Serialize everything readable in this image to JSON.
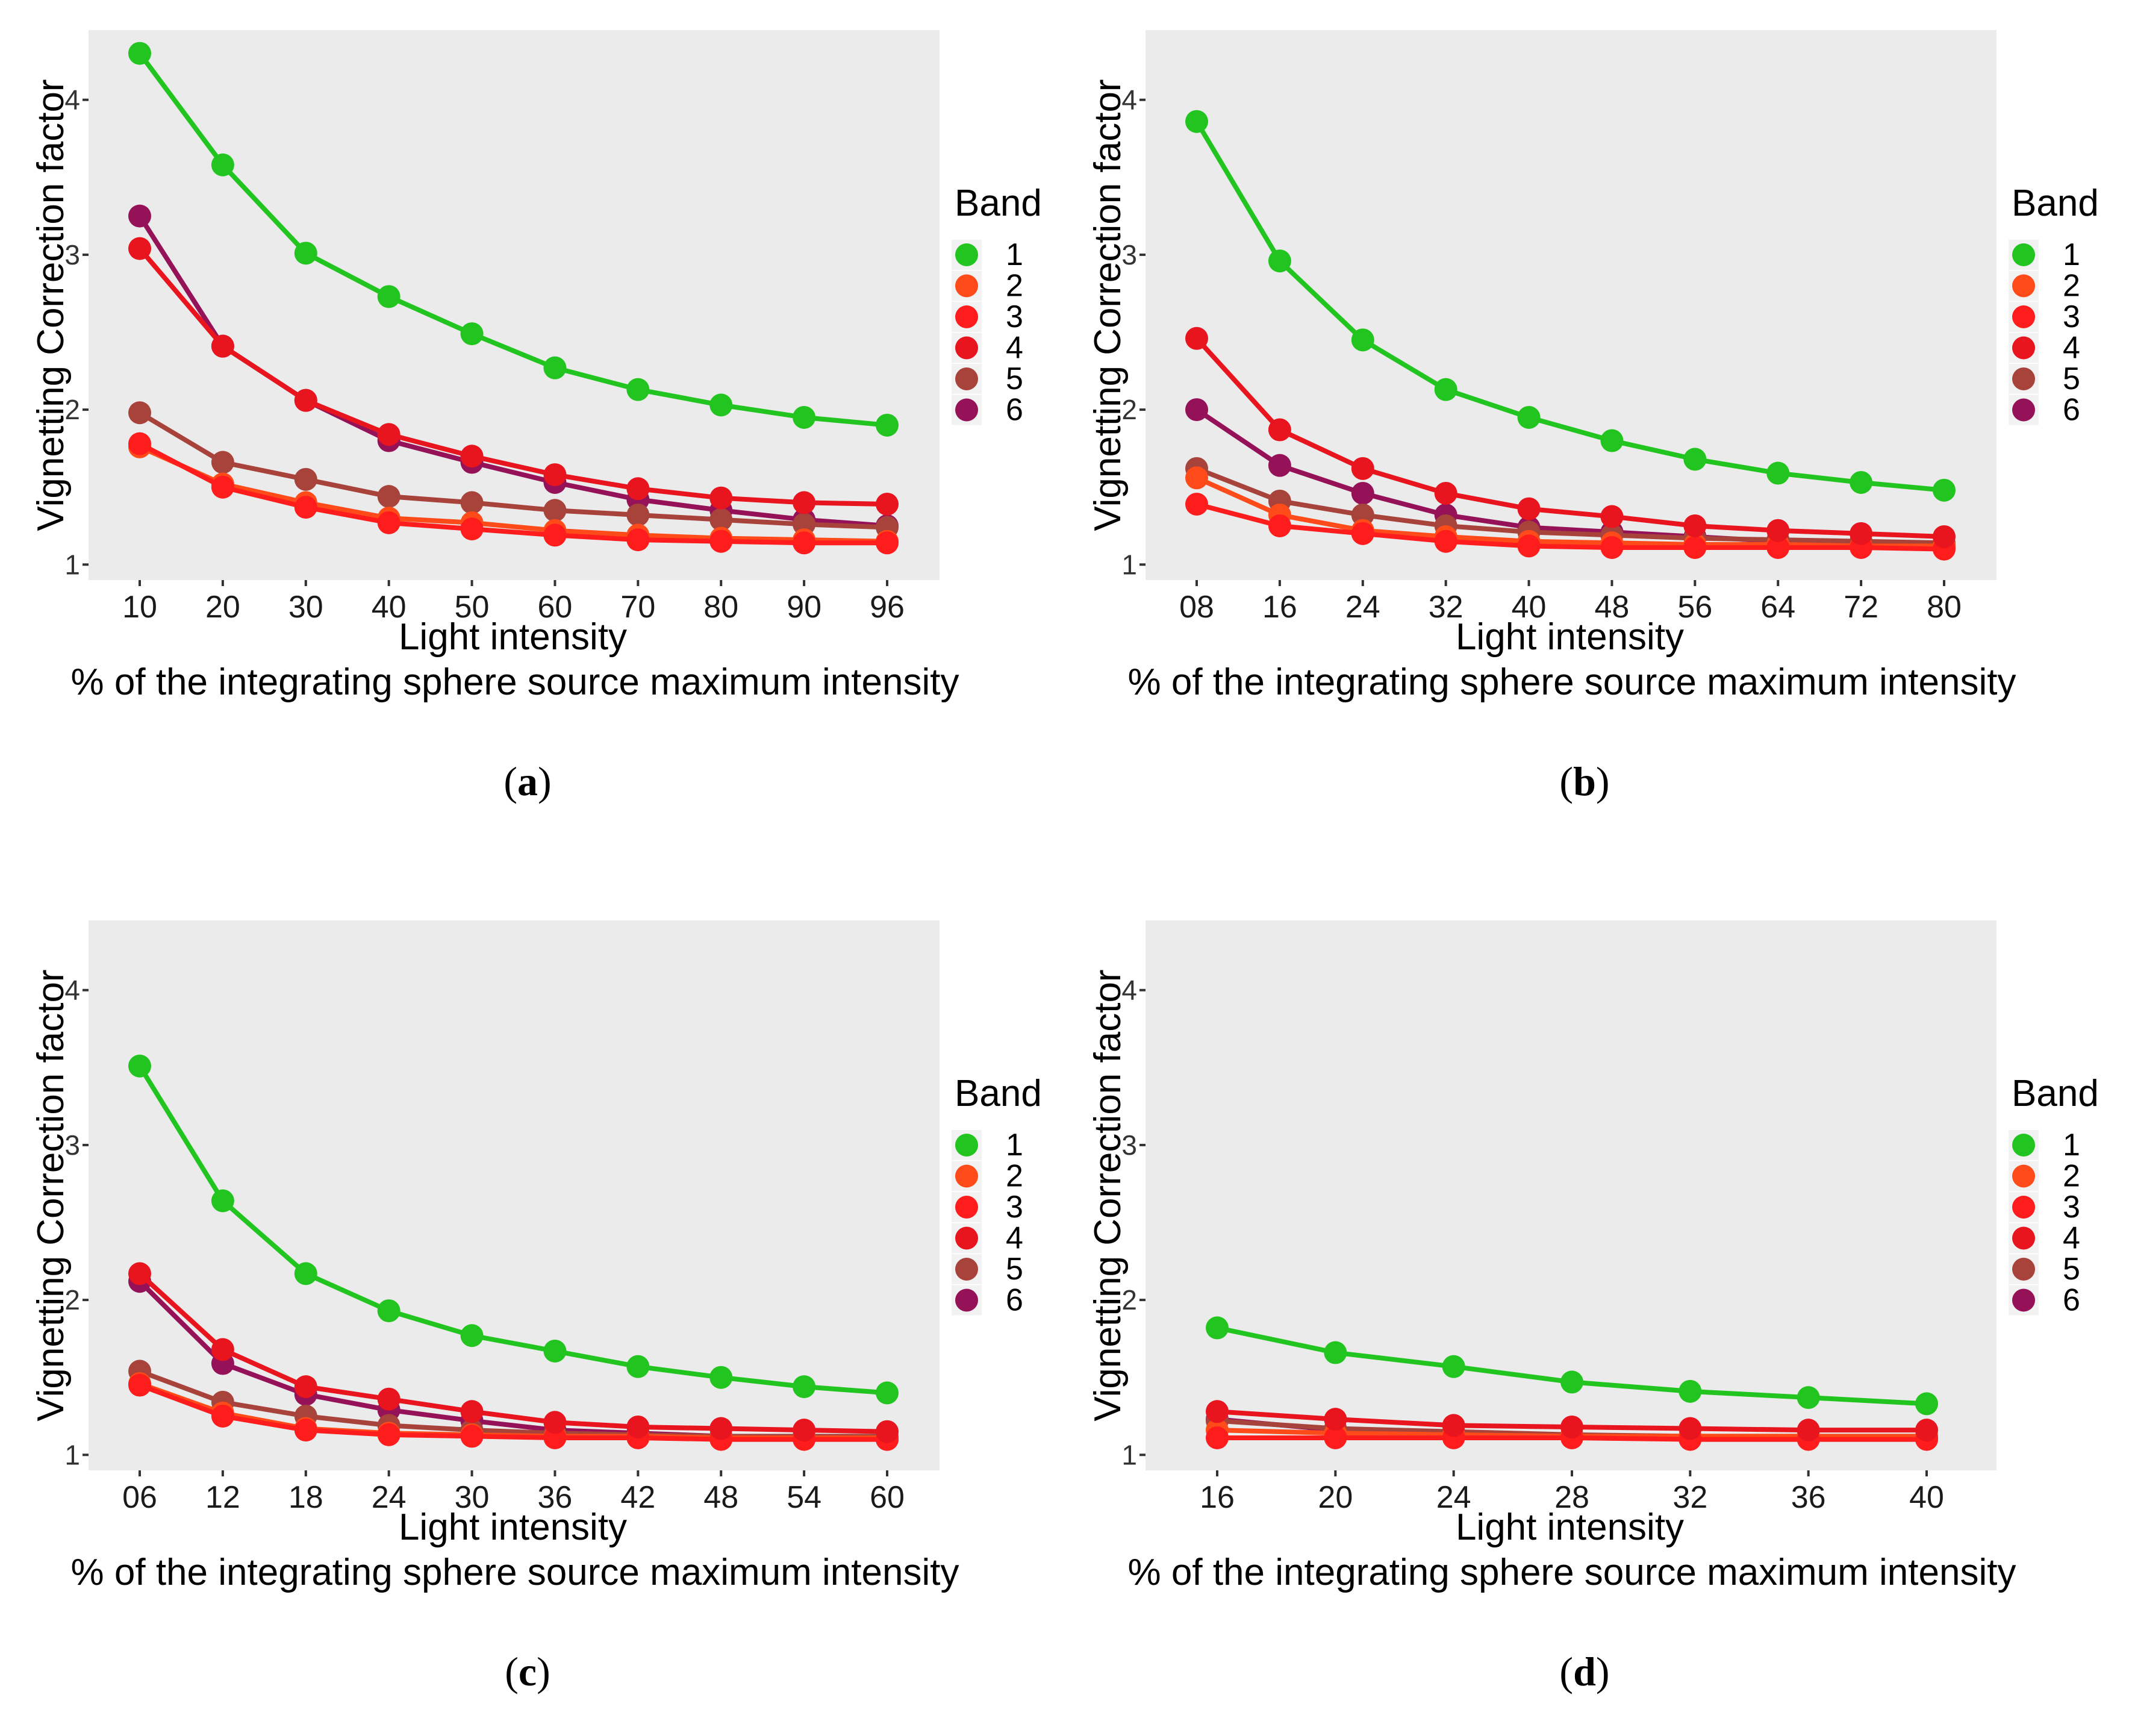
{
  "colors": {
    "panel_bg": "#ebebeb",
    "band1": "#22c51f",
    "band2": "#ff4a1a",
    "band3": "#ff1c1c",
    "band4": "#e8141e",
    "band5": "#a8433c",
    "band6": "#951258"
  },
  "chart_data": [
    {
      "type": "line",
      "panel_label": {
        "open": "(",
        "letter": "a",
        "close": ")"
      },
      "title": "",
      "xlabel": "Light intensity",
      "xlabel2": "% of the integrating sphere source maximum intensity",
      "ylabel": "Vignetting Correction factor",
      "ylim": [
        0.9,
        4.45
      ],
      "yticks": [
        "1",
        "2",
        "3",
        "4"
      ],
      "categories": [
        "10",
        "20",
        "30",
        "40",
        "50",
        "60",
        "70",
        "80",
        "90",
        "96"
      ],
      "legend_title": "Band",
      "legend_position": "right",
      "series": [
        {
          "name": "1",
          "values": [
            4.3,
            3.58,
            3.01,
            2.73,
            2.49,
            2.27,
            2.13,
            2.03,
            1.95,
            1.9
          ]
        },
        {
          "name": "2",
          "values": [
            1.76,
            1.52,
            1.4,
            1.3,
            1.27,
            1.22,
            1.19,
            1.17,
            1.16,
            1.15
          ]
        },
        {
          "name": "3",
          "values": [
            1.78,
            1.5,
            1.37,
            1.27,
            1.23,
            1.19,
            1.16,
            1.15,
            1.14,
            1.14
          ]
        },
        {
          "name": "4",
          "values": [
            3.04,
            2.41,
            2.06,
            1.84,
            1.7,
            1.58,
            1.49,
            1.43,
            1.4,
            1.39
          ]
        },
        {
          "name": "5",
          "values": [
            1.98,
            1.66,
            1.55,
            1.44,
            1.4,
            1.35,
            1.32,
            1.29,
            1.26,
            1.24
          ]
        },
        {
          "name": "6",
          "values": [
            3.25,
            2.41,
            2.06,
            1.8,
            1.66,
            1.53,
            1.42,
            1.35,
            1.29,
            1.25
          ]
        }
      ]
    },
    {
      "type": "line",
      "panel_label": {
        "open": "(",
        "letter": "b",
        "close": ")"
      },
      "title": "",
      "xlabel": "Light intensity",
      "xlabel2": "% of the integrating sphere source maximum intensity",
      "ylabel": "Vignetting Correction factor",
      "ylim": [
        0.9,
        4.45
      ],
      "yticks": [
        "1",
        "2",
        "3",
        "4"
      ],
      "categories": [
        "08",
        "16",
        "24",
        "32",
        "40",
        "48",
        "56",
        "64",
        "72",
        "80"
      ],
      "legend_title": "Band",
      "legend_position": "right",
      "series": [
        {
          "name": "1",
          "values": [
            3.86,
            2.96,
            2.45,
            2.13,
            1.95,
            1.8,
            1.68,
            1.59,
            1.53,
            1.48
          ]
        },
        {
          "name": "2",
          "values": [
            1.56,
            1.32,
            1.22,
            1.18,
            1.15,
            1.14,
            1.13,
            1.13,
            1.12,
            1.12
          ]
        },
        {
          "name": "3",
          "values": [
            1.39,
            1.25,
            1.2,
            1.15,
            1.12,
            1.11,
            1.11,
            1.11,
            1.11,
            1.1
          ]
        },
        {
          "name": "4",
          "values": [
            2.46,
            1.87,
            1.62,
            1.46,
            1.36,
            1.31,
            1.25,
            1.22,
            1.2,
            1.18
          ]
        },
        {
          "name": "5",
          "values": [
            1.62,
            1.41,
            1.32,
            1.25,
            1.21,
            1.19,
            1.17,
            1.16,
            1.15,
            1.14
          ]
        },
        {
          "name": "6",
          "values": [
            2.0,
            1.64,
            1.46,
            1.32,
            1.24,
            1.21,
            1.18,
            1.15,
            1.13,
            1.12
          ]
        }
      ]
    },
    {
      "type": "line",
      "panel_label": {
        "open": "(",
        "letter": "c",
        "close": ")"
      },
      "title": "",
      "xlabel": "Light intensity",
      "xlabel2": "% of the integrating sphere source maximum intensity",
      "ylabel": "Vignetting Correction factor",
      "ylim": [
        0.9,
        4.45
      ],
      "yticks": [
        "1",
        "2",
        "3",
        "4"
      ],
      "categories": [
        "06",
        "12",
        "18",
        "24",
        "30",
        "36",
        "42",
        "48",
        "54",
        "60"
      ],
      "legend_title": "Band",
      "legend_position": "right",
      "series": [
        {
          "name": "1",
          "values": [
            3.51,
            2.64,
            2.17,
            1.93,
            1.77,
            1.67,
            1.57,
            1.5,
            1.44,
            1.4
          ]
        },
        {
          "name": "2",
          "values": [
            1.46,
            1.27,
            1.17,
            1.14,
            1.13,
            1.12,
            1.12,
            1.11,
            1.11,
            1.11
          ]
        },
        {
          "name": "3",
          "values": [
            1.45,
            1.25,
            1.16,
            1.13,
            1.12,
            1.11,
            1.11,
            1.1,
            1.1,
            1.1
          ]
        },
        {
          "name": "4",
          "values": [
            2.17,
            1.68,
            1.44,
            1.36,
            1.28,
            1.21,
            1.18,
            1.17,
            1.16,
            1.15
          ]
        },
        {
          "name": "5",
          "values": [
            1.54,
            1.34,
            1.25,
            1.19,
            1.16,
            1.14,
            1.13,
            1.12,
            1.12,
            1.12
          ]
        },
        {
          "name": "6",
          "values": [
            2.12,
            1.59,
            1.39,
            1.29,
            1.22,
            1.16,
            1.14,
            1.12,
            1.11,
            1.1
          ]
        }
      ]
    },
    {
      "type": "line",
      "panel_label": {
        "open": "(",
        "letter": "d",
        "close": ")"
      },
      "title": "",
      "xlabel": "Light intensity",
      "xlabel2": "% of the integrating sphere source maximum intensity",
      "ylabel": "Vignetting Correction factor",
      "ylim": [
        0.9,
        4.45
      ],
      "yticks": [
        "1",
        "2",
        "3",
        "4"
      ],
      "categories": [
        "16",
        "20",
        "24",
        "28",
        "32",
        "36",
        "40"
      ],
      "legend_title": "Band",
      "legend_position": "right",
      "series": [
        {
          "name": "1",
          "values": [
            1.82,
            1.66,
            1.57,
            1.47,
            1.41,
            1.37,
            1.33
          ]
        },
        {
          "name": "2",
          "values": [
            1.16,
            1.14,
            1.13,
            1.12,
            1.12,
            1.12,
            1.12
          ]
        },
        {
          "name": "3",
          "values": [
            1.11,
            1.11,
            1.11,
            1.11,
            1.1,
            1.1,
            1.1
          ]
        },
        {
          "name": "4",
          "values": [
            1.28,
            1.23,
            1.19,
            1.18,
            1.17,
            1.16,
            1.16
          ]
        },
        {
          "name": "5",
          "values": [
            1.22,
            1.17,
            1.15,
            1.13,
            1.12,
            1.12,
            1.12
          ]
        },
        {
          "name": "6",
          "values": [
            1.23,
            1.16,
            1.13,
            1.12,
            1.11,
            1.11,
            1.11
          ]
        }
      ]
    }
  ]
}
